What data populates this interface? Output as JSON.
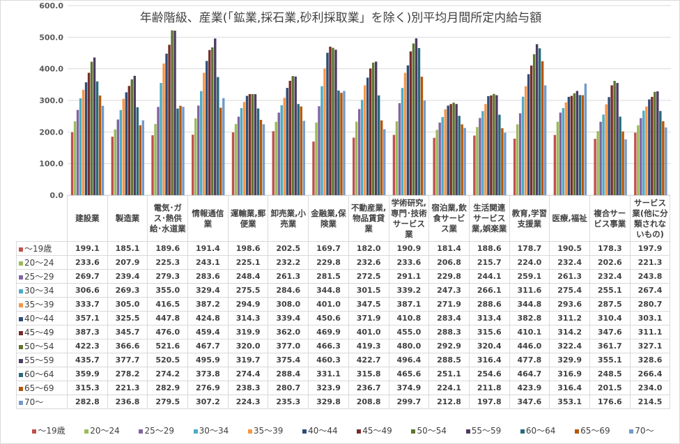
{
  "chart_data": {
    "type": "bar",
    "title": "年齢階級、産業(「鉱業,採石業,砂利採取業」を除く)別平均月間所定内給与額",
    "ylim": [
      0,
      600
    ],
    "yticks": [
      "0.0",
      "100.0",
      "200.0",
      "300.0",
      "400.0",
      "500.0",
      "600.0"
    ],
    "grid": true,
    "legend_position": "bottom",
    "categories": [
      "建設業",
      "製造業",
      "電気･ガス･熱供給･水道業",
      "情報通信業",
      "運輸業,郵便業",
      "卸売業,小売業",
      "金融業,保険業",
      "不動産業,物品賃貸業",
      "学術研究,専門･技術サービス業",
      "宿泊業,飲食サービス業",
      "生活関連サービス業,娯楽業",
      "教育,学習支援業",
      "医療,福祉",
      "複合サービス事業",
      "サービス業(他に分類されないもの)"
    ],
    "series": [
      {
        "name": "～19歳",
        "color": "#c0504d",
        "values": [
          199.1,
          185.1,
          189.6,
          191.4,
          198.6,
          202.5,
          169.7,
          182.0,
          190.9,
          181.4,
          188.6,
          178.7,
          190.5,
          178.3,
          197.9
        ]
      },
      {
        "name": "20～24",
        "color": "#9bbb59",
        "values": [
          233.6,
          207.9,
          225.3,
          243.1,
          225.1,
          232.2,
          229.8,
          232.6,
          233.6,
          206.8,
          215.7,
          224.0,
          232.4,
          202.6,
          221.3
        ]
      },
      {
        "name": "25～29",
        "color": "#8064a2",
        "values": [
          269.7,
          239.4,
          279.3,
          283.6,
          248.4,
          261.3,
          281.5,
          272.5,
          291.1,
          229.8,
          244.1,
          259.1,
          261.3,
          232.4,
          243.8
        ]
      },
      {
        "name": "30～34",
        "color": "#4bacc6",
        "values": [
          306.6,
          269.3,
          355.0,
          329.4,
          275.5,
          284.6,
          344.8,
          301.5,
          339.2,
          247.3,
          266.1,
          311.6,
          275.4,
          255.1,
          267.4
        ]
      },
      {
        "name": "35～39",
        "color": "#f79646",
        "values": [
          333.7,
          305.0,
          416.5,
          387.2,
          294.9,
          308.0,
          401.0,
          347.5,
          387.1,
          271.9,
          288.6,
          344.8,
          293.6,
          287.5,
          280.7
        ]
      },
      {
        "name": "40～44",
        "color": "#2c4d75",
        "values": [
          357.1,
          325.5,
          447.8,
          424.8,
          314.3,
          339.4,
          450.6,
          371.9,
          410.8,
          283.4,
          313.4,
          382.8,
          311.2,
          310.4,
          303.1
        ]
      },
      {
        "name": "45～49",
        "color": "#772c2a",
        "values": [
          387.3,
          345.7,
          476.0,
          459.4,
          319.9,
          362.0,
          469.9,
          401.0,
          455.0,
          288.3,
          315.6,
          410.1,
          314.2,
          347.6,
          311.1
        ]
      },
      {
        "name": "50～54",
        "color": "#5f7530",
        "values": [
          422.3,
          366.6,
          521.6,
          467.7,
          320.0,
          377.0,
          466.3,
          419.3,
          480.0,
          292.9,
          320.4,
          446.0,
          322.4,
          361.7,
          327.1
        ]
      },
      {
        "name": "55～59",
        "color": "#4d3b62",
        "values": [
          435.7,
          377.7,
          520.5,
          495.9,
          319.7,
          375.4,
          460.3,
          422.7,
          496.4,
          288.5,
          316.4,
          477.8,
          329.9,
          355.1,
          328.6
        ]
      },
      {
        "name": "60～64",
        "color": "#276a7c",
        "values": [
          359.9,
          278.2,
          274.2,
          373.8,
          274.4,
          288.4,
          331.1,
          315.8,
          465.6,
          251.1,
          254.6,
          464.7,
          316.9,
          248.5,
          266.4
        ]
      },
      {
        "name": "65～69",
        "color": "#b65708",
        "values": [
          315.3,
          221.3,
          282.9,
          276.9,
          238.3,
          280.7,
          323.9,
          236.7,
          374.9,
          224.1,
          211.8,
          423.9,
          316.4,
          201.5,
          234.0
        ]
      },
      {
        "name": "70～",
        "color": "#729aca",
        "values": [
          282.8,
          236.8,
          279.5,
          307.2,
          224.3,
          235.3,
          329.8,
          208.8,
          299.7,
          212.8,
          197.8,
          347.6,
          353.1,
          176.6,
          214.5
        ]
      }
    ]
  }
}
